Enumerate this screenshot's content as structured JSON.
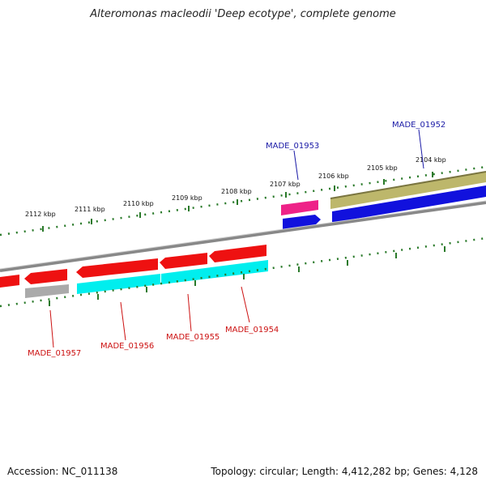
{
  "title": "Alteromonas macleodii 'Deep ecotype', complete genome",
  "footer": {
    "accession": "Accession: NC_011138",
    "summary": "Topology: circular; Length: 4,412,282 bp; Genes: 4,128"
  },
  "scale_labels": [
    "2112 kbp",
    "2111 kbp",
    "2110 kbp",
    "2109 kbp",
    "2108 kbp",
    "2107 kbp",
    "2106 kbp",
    "2105 kbp",
    "2104 kbp"
  ],
  "gene_labels": {
    "top": [
      "MADE_01953",
      "MADE_01952"
    ],
    "bottom": [
      "MADE_01957",
      "MADE_01956",
      "MADE_01955",
      "MADE_01954"
    ]
  },
  "colors": {
    "forward_label": "#1a1aa6",
    "reverse_label": "#cc1111",
    "red_feature": "#ee1111",
    "cyan_feature": "#00eeee",
    "blue_feature": "#1111dd",
    "khaki_feature": "#bdb76b",
    "magenta_feature": "#ee2288",
    "gray_feature": "#aaaaaa",
    "tick_green": "#2a7a2a",
    "backbone": "#888888"
  }
}
